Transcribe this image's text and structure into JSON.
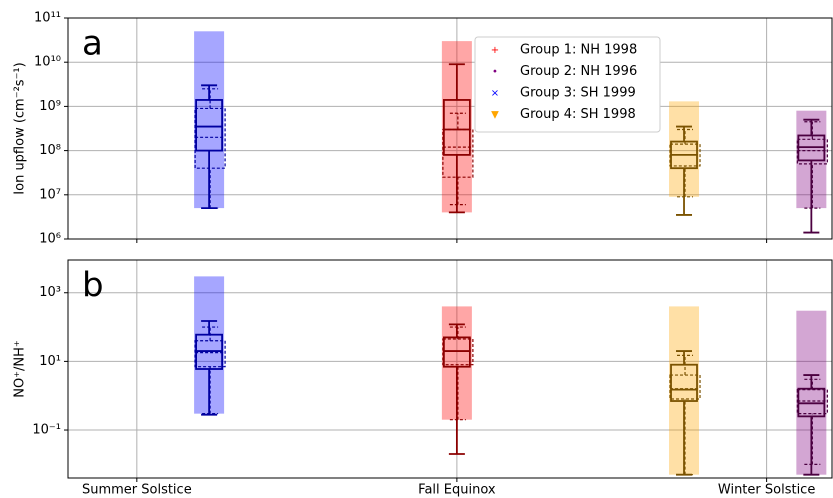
{
  "chart_data": [
    {
      "type": "box",
      "panel_label": "a",
      "ylabel": "Ion upflow (cm⁻²s⁻¹)",
      "yscale": "log",
      "grid": true,
      "ylim": [
        1000000,
        100000000000
      ],
      "yticks": [
        {
          "value": 1000000,
          "label": "10⁶"
        },
        {
          "value": 10000000,
          "label": "10⁷"
        },
        {
          "value": 100000000,
          "label": "10⁸"
        },
        {
          "value": 1000000000,
          "label": "10⁹"
        },
        {
          "value": 10000000000,
          "label": "10¹⁰"
        },
        {
          "value": 100000000000,
          "label": "10¹¹"
        }
      ],
      "xlim": [
        152,
        374
      ],
      "xticks": [
        172,
        265,
        355
      ],
      "legend": "upper center",
      "series": [
        {
          "name": "Group 1: NH 1998",
          "marker": "+",
          "color": "#ff0000",
          "box_color": "#8b0000",
          "x": 265,
          "cloud": [
            4000000,
            30000000000
          ],
          "boxes": [
            {
              "low": 4000000,
              "q1": 80000000,
              "median": 300000000,
              "q3": 1400000000,
              "high": 9000000000
            },
            {
              "low": 6000000,
              "q1": 25000000,
              "median": 120000000,
              "q3": 300000000,
              "high": 700000000
            }
          ]
        },
        {
          "name": "Group 2: NH 1996",
          "marker": "•",
          "color": "#800080",
          "box_color": "#4b0040",
          "x": 368,
          "cloud": [
            5000000,
            800000000
          ],
          "boxes": [
            {
              "low": 1400000,
              "q1": 60000000,
              "median": 120000000,
              "q3": 220000000,
              "high": 500000000
            },
            {
              "low": 5000000,
              "q1": 50000000,
              "median": 100000000,
              "q3": 180000000,
              "high": 450000000
            }
          ]
        },
        {
          "name": "Group 3: SH 1999",
          "marker": "×",
          "color": "#0000ff",
          "box_color": "#0000a0",
          "x": 193,
          "cloud": [
            5000000,
            50000000000
          ],
          "boxes": [
            {
              "low": 5000000,
              "q1": 100000000,
              "median": 350000000,
              "q3": 1400000000,
              "high": 3000000000
            },
            {
              "low": 5000000,
              "q1": 40000000,
              "median": 200000000,
              "q3": 900000000,
              "high": 2500000000
            }
          ]
        },
        {
          "name": "Group 4: SH 1998",
          "marker": "▼",
          "color": "#ffa500",
          "box_color": "#7a5200",
          "x": 331,
          "cloud": [
            9000000,
            1300000000
          ],
          "boxes": [
            {
              "low": 3500000,
              "q1": 40000000,
              "median": 80000000,
              "q3": 160000000,
              "high": 350000000
            },
            {
              "low": 9000000,
              "q1": 45000000,
              "median": 80000000,
              "q3": 140000000,
              "high": 300000000
            }
          ]
        }
      ]
    },
    {
      "type": "box",
      "panel_label": "b",
      "ylabel": "NO⁺/NH⁺",
      "yscale": "log",
      "grid": true,
      "ylim": [
        0.004,
        9000
      ],
      "yticks": [
        {
          "value": 0.1,
          "label": "10⁻¹"
        },
        {
          "value": 10,
          "label": "10¹"
        },
        {
          "value": 1000,
          "label": "10³"
        }
      ],
      "xlim": [
        152,
        374
      ],
      "xticks": [
        {
          "value": 172,
          "label": "Summer Solstice"
        },
        {
          "value": 265,
          "label": "Fall Equinox"
        },
        {
          "value": 355,
          "label": "Winter Solstice"
        }
      ],
      "series": [
        {
          "color": "#ff0000",
          "box_color": "#8b0000",
          "x": 265,
          "cloud": [
            0.2,
            400
          ],
          "boxes": [
            {
              "low": 0.02,
              "q1": 7,
              "median": 20,
              "q3": 50,
              "high": 120
            },
            {
              "low": 0.2,
              "q1": 8,
              "median": 20,
              "q3": 45,
              "high": 100
            }
          ]
        },
        {
          "color": "#800080",
          "box_color": "#4b0040",
          "x": 368,
          "cloud": [
            0.005,
            300
          ],
          "boxes": [
            {
              "low": 0.005,
              "q1": 0.25,
              "median": 0.6,
              "q3": 1.6,
              "high": 4
            },
            {
              "low": 0.01,
              "q1": 0.3,
              "median": 0.7,
              "q3": 1.5,
              "high": 3
            }
          ]
        },
        {
          "color": "#0000ff",
          "box_color": "#0000a0",
          "x": 193,
          "cloud": [
            0.3,
            3000
          ],
          "boxes": [
            {
              "low": 0.28,
              "q1": 6,
              "median": 20,
              "q3": 60,
              "high": 150
            },
            {
              "low": 0.3,
              "q1": 7,
              "median": 18,
              "q3": 40,
              "high": 100
            }
          ]
        },
        {
          "color": "#ffa500",
          "box_color": "#7a5200",
          "x": 331,
          "cloud": [
            0.005,
            400
          ],
          "boxes": [
            {
              "low": 0.005,
              "q1": 0.7,
              "median": 1.5,
              "q3": 8,
              "high": 20
            },
            {
              "low": 0.005,
              "q1": 0.8,
              "median": 1.6,
              "q3": 4,
              "high": 15
            }
          ]
        }
      ]
    }
  ]
}
